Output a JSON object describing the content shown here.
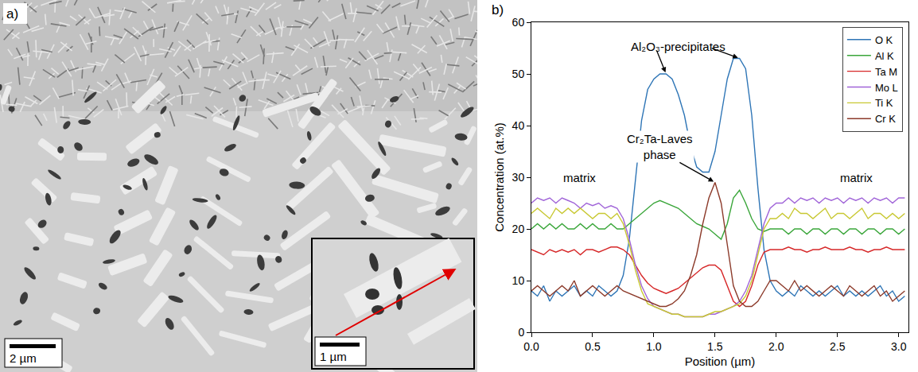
{
  "micrograph": {
    "label": "a)",
    "scale_bar": "2 µm",
    "inset_scale_bar": "1 µm"
  },
  "chart_data": {
    "type": "line",
    "panel_label": "b)",
    "x_label": "Position (µm)",
    "y_label": "Concentration (at.%)",
    "xlim": [
      0,
      3.08
    ],
    "ylim": [
      0,
      60
    ],
    "xticks": [
      {
        "value": 0,
        "label": "0.0"
      },
      0.5,
      {
        "value": 1,
        "label": "1.0"
      },
      1.5,
      {
        "value": 2,
        "label": "2.0"
      },
      2.5,
      {
        "value": 3,
        "label": "3.0"
      }
    ],
    "yticks": [
      0,
      10,
      20,
      30,
      40,
      50,
      60
    ],
    "grid": false,
    "legend": "upper right",
    "x": [
      0,
      0.05,
      0.1,
      0.15,
      0.2,
      0.25,
      0.3,
      0.35,
      0.4,
      0.45,
      0.5,
      0.55,
      0.6,
      0.65,
      0.7,
      0.75,
      0.8,
      0.85,
      0.9,
      0.95,
      1,
      1.05,
      1.1,
      1.15,
      1.2,
      1.25,
      1.3,
      1.35,
      1.4,
      1.45,
      1.5,
      1.55,
      1.6,
      1.65,
      1.7,
      1.75,
      1.8,
      1.85,
      1.9,
      1.95,
      2,
      2.05,
      2.1,
      2.15,
      2.2,
      2.25,
      2.3,
      2.35,
      2.4,
      2.45,
      2.5,
      2.55,
      2.6,
      2.65,
      2.7,
      2.75,
      2.8,
      2.85,
      2.9,
      2.95,
      3,
      3.05
    ],
    "series": [
      {
        "name": "O K",
        "color": "#2e75b6",
        "values": [
          8,
          7,
          9,
          6,
          8,
          7,
          8,
          9,
          7,
          8,
          7,
          9,
          8,
          7,
          8,
          11,
          18,
          30,
          41,
          47,
          49,
          50,
          50,
          49,
          46,
          42,
          36,
          32,
          31,
          31,
          35,
          42,
          49,
          53,
          53,
          51,
          42,
          28,
          16,
          10,
          8,
          7,
          8,
          7,
          9,
          8,
          7,
          8,
          7,
          8,
          9,
          7,
          8,
          7,
          8,
          7,
          8,
          9,
          7,
          8,
          6,
          7
        ]
      },
      {
        "name": "Al K",
        "color": "#3aa63a",
        "values": [
          20,
          21,
          20,
          21,
          20,
          21,
          20,
          20,
          21,
          20,
          21,
          20,
          20,
          21,
          20,
          20,
          21,
          22,
          23,
          24,
          25,
          25.5,
          25,
          24.5,
          24,
          23,
          22,
          21,
          20.5,
          20,
          19,
          18,
          21,
          26,
          27.5,
          25,
          22,
          20,
          19.5,
          20,
          20,
          20,
          19,
          20,
          20,
          19,
          20,
          20,
          19,
          20,
          20,
          19,
          20,
          20,
          19,
          20,
          20,
          19,
          20,
          20,
          19,
          20
        ]
      },
      {
        "name": "Ta M",
        "color": "#d62728",
        "values": [
          16,
          15.5,
          15,
          16,
          15.5,
          16,
          15.5,
          16,
          15,
          16,
          16,
          15.5,
          16,
          16.5,
          16.5,
          16,
          15,
          13,
          11,
          9.5,
          8.5,
          8,
          7.5,
          8,
          8.5,
          9.5,
          10.5,
          11.5,
          12.5,
          13,
          13,
          12,
          9,
          6,
          5,
          6,
          9,
          13,
          15.5,
          16,
          16,
          16,
          16.5,
          16,
          16,
          15.5,
          16,
          16,
          16.5,
          16,
          16,
          16,
          16.5,
          16,
          16,
          15.5,
          16,
          16,
          16.5,
          16,
          16,
          16
        ]
      },
      {
        "name": "Mo L",
        "color": "#a064d8",
        "values": [
          25,
          26,
          25.5,
          26,
          25,
          26,
          25.5,
          25,
          24,
          25,
          24.5,
          25,
          24,
          24.5,
          24,
          22,
          18,
          13,
          9,
          6.5,
          5,
          4.5,
          4,
          3.5,
          3.5,
          3,
          3,
          3,
          3,
          3.5,
          3.5,
          4,
          4.5,
          5,
          6,
          8,
          11,
          16,
          21,
          24,
          25,
          25,
          26,
          25,
          26,
          25.5,
          26,
          25,
          26,
          25.5,
          26,
          25,
          26,
          25.5,
          26,
          25,
          26,
          25.5,
          26,
          25,
          26,
          26
        ]
      },
      {
        "name": "Ti K",
        "color": "#c8c832",
        "values": [
          23,
          24,
          23,
          22,
          24,
          23,
          24,
          23,
          24,
          23,
          22,
          23,
          23,
          22,
          23,
          21,
          17,
          12,
          8,
          5.5,
          5,
          4.5,
          4,
          3.5,
          3.5,
          3,
          3,
          3,
          3,
          3.5,
          4,
          4,
          4.5,
          5,
          5.5,
          7,
          10,
          15,
          20,
          22,
          22,
          23,
          22,
          24,
          23,
          23,
          22,
          23,
          24,
          22,
          23,
          23,
          22,
          23,
          24,
          22,
          23,
          23,
          22,
          23,
          22,
          23
        ]
      },
      {
        "name": "Cr K",
        "color": "#8c3a2a",
        "values": [
          8,
          9,
          8,
          7,
          8,
          9,
          8,
          10,
          7,
          8,
          9,
          8,
          7,
          8,
          9,
          8,
          7.5,
          7,
          6.5,
          6,
          5.5,
          5,
          5,
          5.5,
          6.5,
          8,
          11,
          15,
          21,
          26,
          29,
          25,
          17,
          9,
          6,
          5,
          5,
          6,
          8,
          10,
          10,
          9,
          8,
          10,
          8,
          9,
          8,
          7,
          8,
          9,
          8,
          7,
          9,
          8,
          7,
          8,
          9,
          7,
          8,
          6,
          7,
          8
        ]
      }
    ],
    "annotations": [
      {
        "text": "Al₂O₃-precipitates",
        "points_to": [
          {
            "x": 1.1,
            "y": 50
          },
          {
            "x": 1.7,
            "y": 53
          }
        ]
      },
      {
        "text": "Cr₂Ta-Laves phase",
        "points_to": [
          {
            "x": 1.5,
            "y": 29
          }
        ]
      },
      {
        "text": "matrix"
      },
      {
        "text": "matrix"
      }
    ]
  }
}
